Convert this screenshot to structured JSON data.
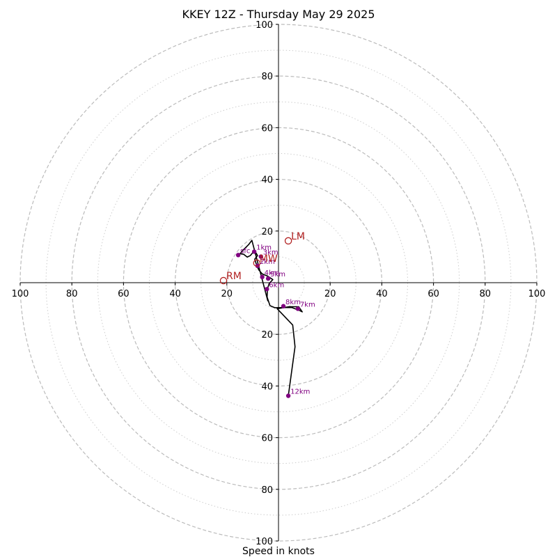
{
  "chart_data": {
    "type": "hodograph",
    "title": "KKEY 12Z - Thursday May 29 2025",
    "xlabel": "Speed in knots",
    "units": "knots",
    "range": 100,
    "dashed_rings": [
      20,
      40,
      60,
      80,
      100
    ],
    "dotted_rings": [
      10,
      30,
      50,
      70,
      90
    ],
    "tick_labels": {
      "left": [
        "100",
        "80",
        "60",
        "40",
        "20"
      ],
      "right": [
        "20",
        "40",
        "60",
        "80",
        "100"
      ],
      "top": [
        "20",
        "40",
        "60",
        "80",
        "100"
      ],
      "bottom": [
        "20",
        "40",
        "60",
        "80",
        "100"
      ]
    },
    "colors": {
      "profile": "#000000",
      "height_marker": "#800080",
      "storm_motion": "#b22222",
      "ring": "#bbbbbb"
    },
    "profile": [
      [
        -4.1,
        -7.2
      ],
      [
        -10.3,
        16.4
      ],
      [
        -11.6,
        14.7
      ],
      [
        -13.8,
        12.5
      ],
      [
        -14.9,
        11.2
      ],
      [
        -13.5,
        11.0
      ],
      [
        -12.1,
        9.9
      ],
      [
        -10.9,
        10.5
      ],
      [
        -10.0,
        11.6
      ],
      [
        -8.9,
        11.8
      ],
      [
        -8.1,
        10.5
      ],
      [
        -9.2,
        9.1
      ],
      [
        -8.3,
        6.3
      ],
      [
        -7.6,
        4.9
      ],
      [
        -6.3,
        3.4
      ],
      [
        -4.1,
        2.5
      ],
      [
        -2.2,
        1.2
      ],
      [
        -3.6,
        -0.3
      ],
      [
        -4.3,
        -2.4
      ],
      [
        -4.4,
        -5.6
      ],
      [
        -3.3,
        -8.9
      ],
      [
        -1.4,
        -9.7
      ],
      [
        5.1,
        -9.6
      ],
      [
        7.8,
        -10.6
      ],
      [
        9.2,
        -11.3
      ],
      [
        7.8,
        -9.3
      ],
      [
        4.1,
        -9.3
      ],
      [
        -0.5,
        -10.1
      ],
      [
        5.5,
        -16.4
      ],
      [
        6.4,
        -24.8
      ],
      [
        3.8,
        -43.8
      ]
    ],
    "height_labels": [
      {
        "label": "sfc",
        "u": -15.6,
        "v": 10.7
      },
      {
        "label": "1km",
        "u": -9.4,
        "v": 12.0
      },
      {
        "label": "2km",
        "u": -8.1,
        "v": 6.5
      },
      {
        "label": "3km",
        "u": -6.8,
        "v": 10.1
      },
      {
        "label": "4km",
        "u": -6.3,
        "v": 2.2
      },
      {
        "label": "5km",
        "u": -4.0,
        "v": 1.6
      },
      {
        "label": "6km",
        "u": -4.5,
        "v": -2.5
      },
      {
        "label": "7km",
        "u": 7.5,
        "v": -10.1
      },
      {
        "label": "8km",
        "u": 1.9,
        "v": -9.1
      },
      {
        "label": "12km",
        "u": 3.8,
        "v": -43.8
      }
    ],
    "storm_motion": [
      {
        "label": "LM",
        "u": 3.8,
        "v": 16.2
      },
      {
        "label": "RM",
        "u": -21.3,
        "v": 0.8
      },
      {
        "label": "MW",
        "u": -8.4,
        "v": 7.6
      }
    ]
  }
}
